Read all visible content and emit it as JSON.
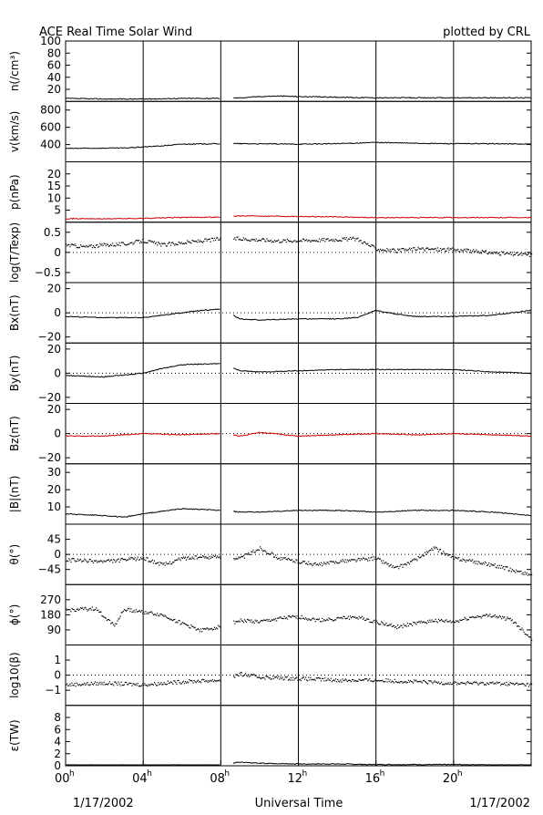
{
  "header": {
    "title": "ACE Real Time Solar Wind",
    "credit": "plotted by CRL"
  },
  "footer": {
    "date_left": "1/17/2002",
    "xlabel": "Universal Time",
    "date_right": "1/17/2002"
  },
  "colors": {
    "black": "#000000",
    "red": "#cc0000"
  },
  "chart_data": {
    "type": "line",
    "x_unit": "hours UT",
    "x_range": [
      0,
      24
    ],
    "x_ticks": [
      {
        "h": 0,
        "label": "00",
        "sup": "h"
      },
      {
        "h": 4,
        "label": "04",
        "sup": "h"
      },
      {
        "h": 8,
        "label": "08",
        "sup": "h"
      },
      {
        "h": 12,
        "label": "12",
        "sup": "h"
      },
      {
        "h": 16,
        "label": "16",
        "sup": "h"
      },
      {
        "h": 20,
        "label": "20",
        "sup": "h"
      }
    ],
    "data_gap_hours": [
      7.95,
      8.6
    ],
    "panels": [
      {
        "key": "n",
        "label": "n(/cm³)",
        "ylim": [
          0,
          100
        ],
        "ticks": [
          {
            "v": 20,
            "t": "20"
          },
          {
            "v": 40,
            "t": "40"
          },
          {
            "v": 60,
            "t": "60"
          },
          {
            "v": 80,
            "t": "80"
          },
          {
            "v": 100,
            "t": "100"
          }
        ],
        "color": "#000000",
        "style": "line",
        "zero": null,
        "values": [
          [
            0,
            5
          ],
          [
            2,
            4
          ],
          [
            4,
            4
          ],
          [
            6,
            5
          ],
          [
            8,
            5
          ],
          [
            9,
            6
          ],
          [
            10,
            8
          ],
          [
            11,
            9
          ],
          [
            12,
            8
          ],
          [
            14,
            7
          ],
          [
            16,
            6
          ],
          [
            18,
            6
          ],
          [
            20,
            6
          ],
          [
            22,
            6
          ],
          [
            24,
            6
          ]
        ]
      },
      {
        "key": "v",
        "label": "v(km/s)",
        "ylim": [
          200,
          900
        ],
        "ticks": [
          {
            "v": 400,
            "t": "400"
          },
          {
            "v": 600,
            "t": "600"
          },
          {
            "v": 800,
            "t": "800"
          }
        ],
        "color": "#000000",
        "style": "line",
        "zero": null,
        "values": [
          [
            0,
            355
          ],
          [
            3,
            360
          ],
          [
            5,
            385
          ],
          [
            6,
            405
          ],
          [
            8,
            410
          ],
          [
            9,
            410
          ],
          [
            12,
            405
          ],
          [
            14,
            410
          ],
          [
            16,
            425
          ],
          [
            18,
            415
          ],
          [
            20,
            410
          ],
          [
            22,
            410
          ],
          [
            24,
            405
          ]
        ]
      },
      {
        "key": "p",
        "label": "p(nPa)",
        "ylim": [
          0,
          25
        ],
        "ticks": [
          {
            "v": 5,
            "t": "5"
          },
          {
            "v": 10,
            "t": "10"
          },
          {
            "v": 15,
            "t": "15"
          },
          {
            "v": 20,
            "t": "20"
          }
        ],
        "color": "#cc0000",
        "style": "line",
        "zero": null,
        "values": [
          [
            0,
            1.5
          ],
          [
            2,
            1.4
          ],
          [
            4,
            1.6
          ],
          [
            6,
            2.0
          ],
          [
            8,
            2.1
          ],
          [
            9,
            2.6
          ],
          [
            11,
            2.5
          ],
          [
            13,
            2.3
          ],
          [
            16,
            1.9
          ],
          [
            18,
            1.9
          ],
          [
            20,
            1.9
          ],
          [
            22,
            1.9
          ],
          [
            24,
            1.9
          ]
        ]
      },
      {
        "key": "T",
        "label": "log(T/Texp)",
        "ylim": [
          -0.75,
          0.75
        ],
        "ticks": [
          {
            "v": -0.5,
            "t": "−0.5"
          },
          {
            "v": 0,
            "t": "0"
          },
          {
            "v": 0.5,
            "t": "0.5"
          }
        ],
        "color": "#000000",
        "style": "dots",
        "zero": 0,
        "values": [
          [
            0,
            0.2
          ],
          [
            1,
            0.15
          ],
          [
            2,
            0.2
          ],
          [
            3,
            0.22
          ],
          [
            4,
            0.3
          ],
          [
            5,
            0.2
          ],
          [
            6,
            0.25
          ],
          [
            7,
            0.3
          ],
          [
            8,
            0.35
          ],
          [
            9,
            0.35
          ],
          [
            11,
            0.3
          ],
          [
            13,
            0.32
          ],
          [
            15,
            0.35
          ],
          [
            16,
            0.1
          ],
          [
            17,
            0.05
          ],
          [
            18,
            0.1
          ],
          [
            20,
            0.08
          ],
          [
            22,
            0.0
          ],
          [
            24,
            -0.05
          ]
        ]
      },
      {
        "key": "Bx",
        "label": "Bx(nT)",
        "ylim": [
          -25,
          25
        ],
        "ticks": [
          {
            "v": -20,
            "t": "−20"
          },
          {
            "v": 0,
            "t": "0"
          },
          {
            "v": 20,
            "t": "20"
          }
        ],
        "color": "#000000",
        "style": "line",
        "zero": 0,
        "values": [
          [
            0,
            -3
          ],
          [
            2,
            -4
          ],
          [
            4,
            -4
          ],
          [
            5,
            -2
          ],
          [
            6,
            0
          ],
          [
            7,
            2
          ],
          [
            8,
            3
          ],
          [
            9,
            -5
          ],
          [
            10,
            -6
          ],
          [
            12,
            -5
          ],
          [
            14,
            -5
          ],
          [
            15,
            -4
          ],
          [
            16,
            2
          ],
          [
            17,
            -1
          ],
          [
            18,
            -3
          ],
          [
            20,
            -3
          ],
          [
            22,
            -2
          ],
          [
            24,
            2
          ]
        ]
      },
      {
        "key": "By",
        "label": "By(nT)",
        "ylim": [
          -25,
          25
        ],
        "ticks": [
          {
            "v": -20,
            "t": "−20"
          },
          {
            "v": 0,
            "t": "0"
          },
          {
            "v": 20,
            "t": "20"
          }
        ],
        "color": "#000000",
        "style": "line",
        "zero": 0,
        "values": [
          [
            0,
            -2
          ],
          [
            2,
            -3
          ],
          [
            4,
            0
          ],
          [
            5,
            4
          ],
          [
            6,
            7
          ],
          [
            8,
            8
          ],
          [
            9,
            2
          ],
          [
            10,
            1
          ],
          [
            12,
            2
          ],
          [
            14,
            3
          ],
          [
            16,
            3
          ],
          [
            18,
            3
          ],
          [
            20,
            3
          ],
          [
            22,
            1
          ],
          [
            24,
            0
          ]
        ]
      },
      {
        "key": "Bz",
        "label": "Bz(nT)",
        "ylim": [
          -25,
          25
        ],
        "ticks": [
          {
            "v": -20,
            "t": "−20"
          },
          {
            "v": 0,
            "t": "0"
          },
          {
            "v": 20,
            "t": "20"
          }
        ],
        "color": "#cc0000",
        "style": "line",
        "zero": 0,
        "values": [
          [
            0,
            -2
          ],
          [
            2,
            -2
          ],
          [
            4,
            0
          ],
          [
            6,
            -1
          ],
          [
            8,
            0
          ],
          [
            9,
            -2
          ],
          [
            10,
            1
          ],
          [
            12,
            -2
          ],
          [
            14,
            -1
          ],
          [
            16,
            0
          ],
          [
            18,
            -1
          ],
          [
            20,
            0
          ],
          [
            22,
            -1
          ],
          [
            24,
            -2
          ]
        ]
      },
      {
        "key": "B",
        "label": "|B|(nT)",
        "ylim": [
          0,
          35
        ],
        "ticks": [
          {
            "v": 10,
            "t": "10"
          },
          {
            "v": 20,
            "t": "20"
          },
          {
            "v": 30,
            "t": "30"
          }
        ],
        "color": "#000000",
        "style": "line",
        "zero": null,
        "values": [
          [
            0,
            6
          ],
          [
            2,
            5
          ],
          [
            3,
            4
          ],
          [
            4,
            6
          ],
          [
            6,
            9
          ],
          [
            8,
            8
          ],
          [
            9,
            7
          ],
          [
            10,
            7
          ],
          [
            12,
            8
          ],
          [
            14,
            8
          ],
          [
            16,
            7
          ],
          [
            18,
            8
          ],
          [
            20,
            8
          ],
          [
            22,
            7
          ],
          [
            24,
            5
          ]
        ]
      },
      {
        "key": "theta",
        "label": "θ(°)",
        "ylim": [
          -90,
          90
        ],
        "ticks": [
          {
            "v": -45,
            "t": "−45"
          },
          {
            "v": 0,
            "t": "0"
          },
          {
            "v": 45,
            "t": "45"
          }
        ],
        "color": "#000000",
        "style": "dots",
        "zero": 0,
        "values": [
          [
            0,
            -15
          ],
          [
            2,
            -20
          ],
          [
            4,
            -10
          ],
          [
            5,
            -30
          ],
          [
            6,
            -10
          ],
          [
            8,
            -5
          ],
          [
            9,
            -10
          ],
          [
            10,
            20
          ],
          [
            11,
            -10
          ],
          [
            12,
            -20
          ],
          [
            13,
            -30
          ],
          [
            14,
            -20
          ],
          [
            16,
            -10
          ],
          [
            17,
            -40
          ],
          [
            18,
            -15
          ],
          [
            19,
            20
          ],
          [
            20,
            -10
          ],
          [
            22,
            -30
          ],
          [
            24,
            -60
          ]
        ]
      },
      {
        "key": "phi",
        "label": "ϕ(°)",
        "ylim": [
          0,
          360
        ],
        "ticks": [
          {
            "v": 90,
            "t": "90"
          },
          {
            "v": 180,
            "t": "180"
          },
          {
            "v": 270,
            "t": "270"
          }
        ],
        "color": "#000000",
        "style": "dots",
        "zero": null,
        "values": [
          [
            0,
            210
          ],
          [
            1.5,
            220
          ],
          [
            2.5,
            120
          ],
          [
            3,
            215
          ],
          [
            4,
            200
          ],
          [
            5,
            180
          ],
          [
            6,
            130
          ],
          [
            7,
            90
          ],
          [
            7.8,
            110
          ],
          [
            9,
            150
          ],
          [
            10,
            140
          ],
          [
            11,
            160
          ],
          [
            12,
            170
          ],
          [
            13,
            150
          ],
          [
            14,
            160
          ],
          [
            15,
            170
          ],
          [
            16,
            140
          ],
          [
            17,
            110
          ],
          [
            18,
            130
          ],
          [
            19,
            150
          ],
          [
            20,
            140
          ],
          [
            21,
            170
          ],
          [
            22,
            180
          ],
          [
            23,
            150
          ],
          [
            24,
            40
          ]
        ]
      },
      {
        "key": "beta",
        "label": "log10(β)",
        "ylim": [
          -2,
          2
        ],
        "ticks": [
          {
            "v": -1,
            "t": "−1"
          },
          {
            "v": 0,
            "t": "0"
          },
          {
            "v": 1,
            "t": "1"
          }
        ],
        "color": "#000000",
        "style": "dots",
        "zero": 0,
        "values": [
          [
            0,
            -0.6
          ],
          [
            2,
            -0.5
          ],
          [
            4,
            -0.6
          ],
          [
            6,
            -0.4
          ],
          [
            8,
            -0.3
          ],
          [
            9,
            0.1
          ],
          [
            10,
            -0.1
          ],
          [
            12,
            -0.2
          ],
          [
            14,
            -0.3
          ],
          [
            16,
            -0.3
          ],
          [
            18,
            -0.4
          ],
          [
            20,
            -0.5
          ],
          [
            22,
            -0.5
          ],
          [
            24,
            -0.6
          ]
        ]
      },
      {
        "key": "eps",
        "label": "ε(TW)",
        "ylim": [
          0,
          10
        ],
        "ticks": [
          {
            "v": 0,
            "t": "0"
          },
          {
            "v": 2,
            "t": "2"
          },
          {
            "v": 4,
            "t": "4"
          },
          {
            "v": 6,
            "t": "6"
          },
          {
            "v": 8,
            "t": "8"
          }
        ],
        "color": "#000000",
        "style": "line",
        "zero": null,
        "values": [
          [
            0,
            0.1
          ],
          [
            4,
            0.1
          ],
          [
            8,
            0.1
          ],
          [
            9,
            0.6
          ],
          [
            10,
            0.4
          ],
          [
            12,
            0.3
          ],
          [
            14,
            0.3
          ],
          [
            16,
            0.2
          ],
          [
            18,
            0.2
          ],
          [
            20,
            0.2
          ],
          [
            24,
            0.1
          ]
        ]
      }
    ]
  }
}
